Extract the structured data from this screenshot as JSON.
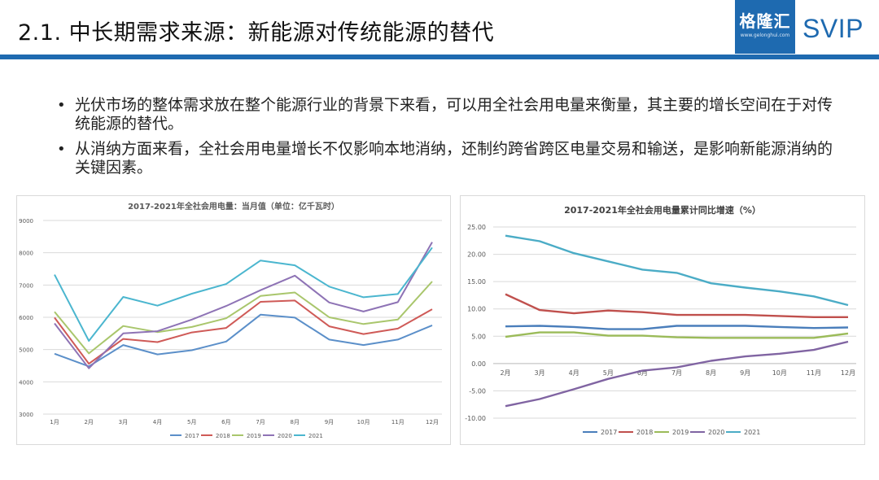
{
  "header": {
    "title": "2.1. 中长期需求来源：新能源对传统能源的替代",
    "brand_cn": "格隆汇",
    "brand_url": "www.gelonghui.com",
    "svip": "SVIP",
    "accent_color": "#1e6ab0"
  },
  "bullets": [
    {
      "text": "光伏市场的整体需求放在整个能源行业的背景下来看，可以用全社会用电量来衡量，其主要的增长空间在于对传统能源的替代。"
    },
    {
      "text": "从消纳方面来看，全社会用电量增长不仅影响本地消纳，还制约跨省跨区电量交易和输送，是影响新能源消纳的关键因素。"
    }
  ],
  "bullet_glyph": "•",
  "chart_data": [
    {
      "type": "line",
      "title": "2017-2021年全社会用电量：当月值（单位：亿千瓦时）",
      "categories": [
        "1月",
        "2月",
        "3月",
        "4月",
        "5月",
        "6月",
        "7月",
        "8月",
        "9月",
        "10月",
        "11月",
        "12月"
      ],
      "ylim": [
        3000,
        9000
      ],
      "yticks": [
        "3000",
        "4000",
        "5000",
        "6000",
        "7000",
        "8000",
        "9000"
      ],
      "grid": true,
      "legend_position": "bottom",
      "series": [
        {
          "name": "2017",
          "color": "#5b8fc9",
          "values": [
            4870,
            4480,
            5140,
            4850,
            4980,
            5250,
            6080,
            5990,
            5310,
            5140,
            5310,
            5750
          ]
        },
        {
          "name": "2018",
          "color": "#cf5a57",
          "values": [
            5990,
            4560,
            5330,
            5230,
            5530,
            5670,
            6480,
            6520,
            5720,
            5480,
            5650,
            6250
          ]
        },
        {
          "name": "2019",
          "color": "#a9c66c",
          "values": [
            6170,
            4880,
            5730,
            5540,
            5700,
            5970,
            6660,
            6770,
            6000,
            5790,
            5930,
            7110
          ]
        },
        {
          "name": "2020",
          "color": "#8e73b5",
          "values": [
            5810,
            4420,
            5500,
            5570,
            5930,
            6350,
            6840,
            7290,
            6460,
            6180,
            6470,
            8330
          ]
        },
        {
          "name": "2021",
          "color": "#4bb6cf",
          "values": [
            7320,
            5270,
            6630,
            6360,
            6730,
            7030,
            7760,
            7610,
            6950,
            6620,
            6720,
            8160
          ]
        }
      ]
    },
    {
      "type": "line",
      "title": "2017-2021年全社会用电量累计同比增速（%）",
      "categories": [
        "2月",
        "3月",
        "4月",
        "5月",
        "6月",
        "7月",
        "8月",
        "9月",
        "10月",
        "11月",
        "12月"
      ],
      "ylim": [
        -10,
        25
      ],
      "yticks": [
        "-10.00",
        "-5.00",
        "0.00",
        "5.00",
        "10.00",
        "15.00",
        "20.00",
        "25.00"
      ],
      "grid": true,
      "legend_position": "bottom",
      "series": [
        {
          "name": "2017",
          "color": "#4a7ebb",
          "values": [
            6.8,
            6.9,
            6.7,
            6.3,
            6.3,
            6.9,
            6.9,
            6.9,
            6.7,
            6.5,
            6.6
          ]
        },
        {
          "name": "2018",
          "color": "#c0504d",
          "values": [
            12.7,
            9.8,
            9.2,
            9.7,
            9.4,
            8.9,
            8.9,
            8.9,
            8.7,
            8.5,
            8.5
          ]
        },
        {
          "name": "2019",
          "color": "#9bbb59",
          "values": [
            4.9,
            5.7,
            5.7,
            5.1,
            5.1,
            4.8,
            4.7,
            4.7,
            4.7,
            4.7,
            5.5
          ]
        },
        {
          "name": "2020",
          "color": "#8064a2",
          "values": [
            -7.8,
            -6.5,
            -4.7,
            -2.8,
            -1.3,
            -0.7,
            0.5,
            1.3,
            1.8,
            2.5,
            4.0
          ]
        },
        {
          "name": "2021",
          "color": "#4bacc6",
          "values": [
            23.4,
            22.4,
            20.2,
            18.7,
            17.2,
            16.6,
            14.7,
            13.9,
            13.2,
            12.3,
            10.7
          ]
        }
      ]
    }
  ]
}
